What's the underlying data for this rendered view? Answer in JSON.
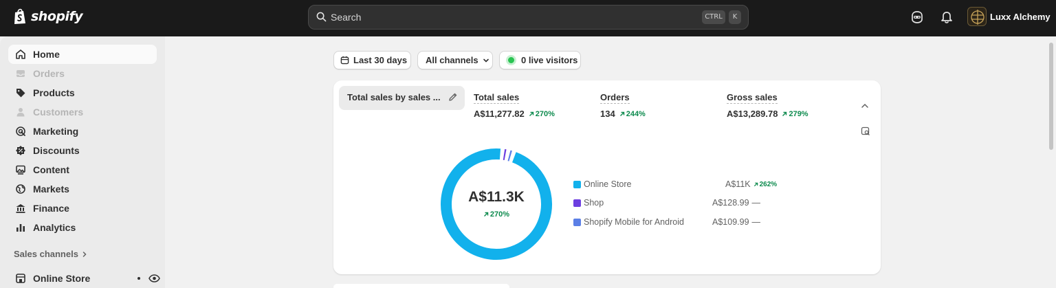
{
  "brand": {
    "logo_text": "shopify"
  },
  "search": {
    "placeholder": "Search",
    "shortcut_ctrl": "CTRL",
    "shortcut_key": "K"
  },
  "account": {
    "store_name": "Luxx Alchemy"
  },
  "sidebar": {
    "items": [
      {
        "label": "Home",
        "icon": "home-icon",
        "state": "active"
      },
      {
        "label": "Orders",
        "icon": "inbox-icon",
        "state": "disabled"
      },
      {
        "label": "Products",
        "icon": "tag-icon",
        "state": "normal"
      },
      {
        "label": "Customers",
        "icon": "person-icon",
        "state": "disabled"
      },
      {
        "label": "Marketing",
        "icon": "target-icon",
        "state": "normal"
      },
      {
        "label": "Discounts",
        "icon": "discount-icon",
        "state": "normal"
      },
      {
        "label": "Content",
        "icon": "image-icon",
        "state": "normal"
      },
      {
        "label": "Markets",
        "icon": "globe-icon",
        "state": "normal"
      },
      {
        "label": "Finance",
        "icon": "bank-icon",
        "state": "normal"
      },
      {
        "label": "Analytics",
        "icon": "bar-chart-icon",
        "state": "normal"
      }
    ],
    "sales_channels_label": "Sales channels",
    "online_store_label": "Online Store"
  },
  "filters": {
    "date_range": "Last 30 days",
    "channels": "All channels",
    "live_visitors": "0 live visitors"
  },
  "card": {
    "metric_selector": "Total sales by sales ...",
    "metrics": [
      {
        "title": "Total sales",
        "value": "A$11,277.82",
        "change": "270%"
      },
      {
        "title": "Orders",
        "value": "134",
        "change": "244%"
      },
      {
        "title": "Gross sales",
        "value": "A$13,289.78",
        "change": "279%"
      }
    ],
    "donut_center_value": "A$11.3K",
    "donut_center_change": "270%"
  },
  "chart_data": {
    "type": "pie",
    "categories": [
      "Online Store",
      "Shop",
      "Shopify Mobile for Android"
    ],
    "values": [
      11000,
      128.99,
      109.99
    ],
    "value_labels": [
      "A$11K",
      "A$128.99",
      "A$109.99"
    ],
    "changes": [
      "262%",
      "—",
      "—"
    ],
    "colors": [
      "#12b1ec",
      "#6d3fe0",
      "#5b7fe6"
    ]
  },
  "colors": {
    "positive": "#0c8a4d",
    "topbar": "#1a1a1a",
    "live": "#29c452"
  }
}
